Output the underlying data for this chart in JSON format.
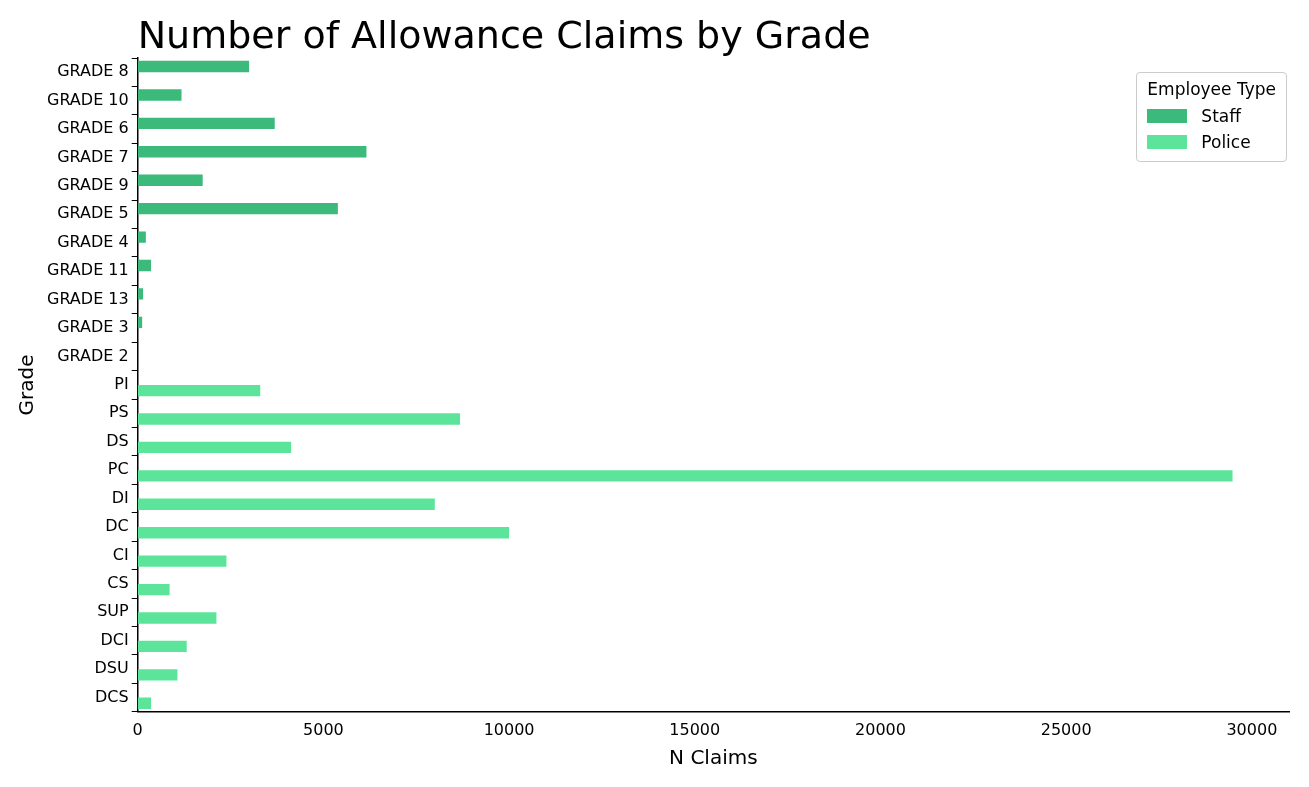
{
  "chart_data": {
    "type": "bar",
    "orientation": "horizontal",
    "title": "Number of Allowance Claims by Grade",
    "xlabel": "N Claims",
    "ylabel": "Grade",
    "legend_title": "Employee Type",
    "legend": "top right",
    "categories": [
      "GRADE 8",
      "GRADE 10",
      "GRADE 6",
      "GRADE 7",
      "GRADE 9",
      "GRADE 5",
      "GRADE 4",
      "GRADE 11",
      "GRADE 13",
      "GRADE 3",
      "GRADE 2",
      "PI",
      "PS",
      "DS",
      "PC",
      "DI",
      "DC",
      "CI",
      "CS",
      "SUP",
      "DCI",
      "DSU",
      "DCS"
    ],
    "series": [
      {
        "name": "Staff",
        "color": "#3bba7c",
        "values": [
          3000,
          1180,
          3690,
          6160,
          1750,
          5390,
          220,
          360,
          145,
          120,
          0,
          null,
          null,
          null,
          null,
          null,
          null,
          null,
          null,
          null,
          null,
          null,
          null
        ]
      },
      {
        "name": "Police",
        "color": "#5ce59a",
        "values": [
          null,
          null,
          null,
          null,
          null,
          null,
          null,
          null,
          null,
          null,
          null,
          3300,
          8680,
          4130,
          29480,
          8000,
          10000,
          2390,
          860,
          2120,
          1320,
          1070,
          360
        ]
      }
    ],
    "xlim": [
      0,
      31000
    ],
    "xticks": [
      0,
      5000,
      10000,
      15000,
      20000,
      25000,
      30000
    ]
  }
}
